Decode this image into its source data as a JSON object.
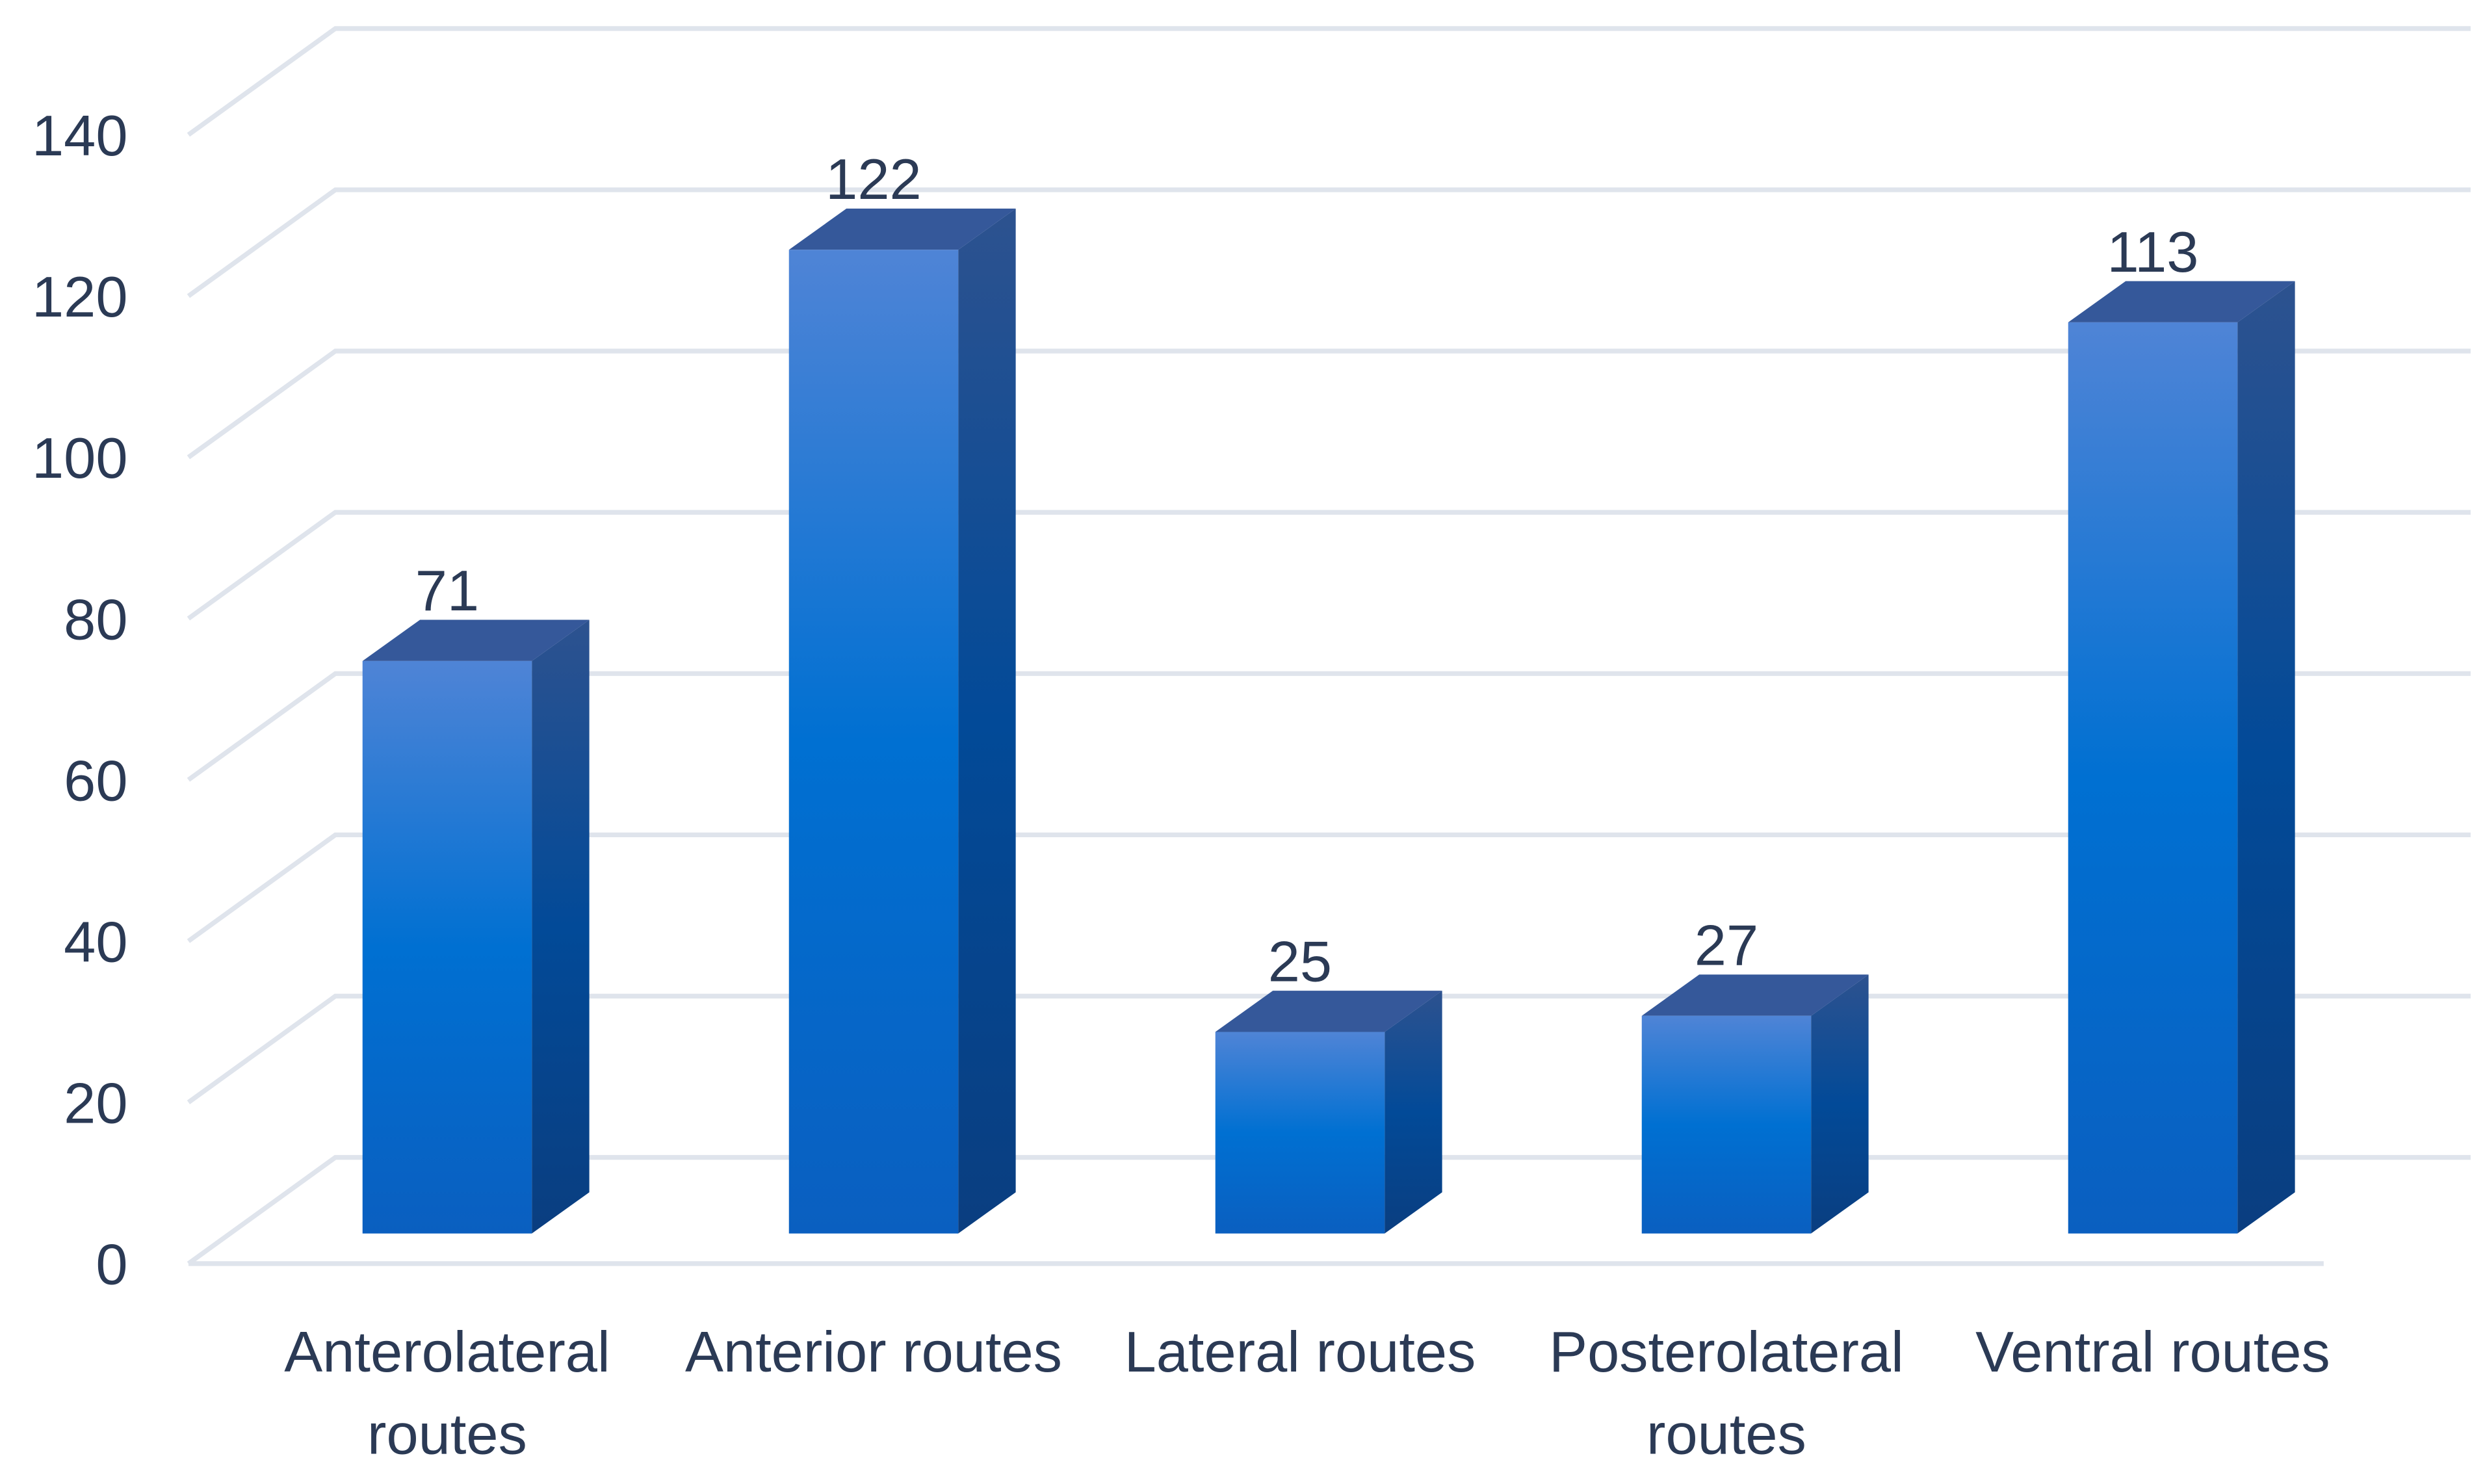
{
  "chart_data": {
    "type": "bar",
    "categories": [
      "Anterolateral routes",
      "Anterior routes",
      "Lateral routes",
      "Posterolateral routes",
      "Ventral routes"
    ],
    "values": [
      71,
      122,
      25,
      27,
      113
    ],
    "color": "#0070d0",
    "ylim": [
      0,
      140
    ],
    "yticks": [
      0,
      20,
      40,
      60,
      80,
      100,
      120,
      140
    ],
    "grid": true
  }
}
